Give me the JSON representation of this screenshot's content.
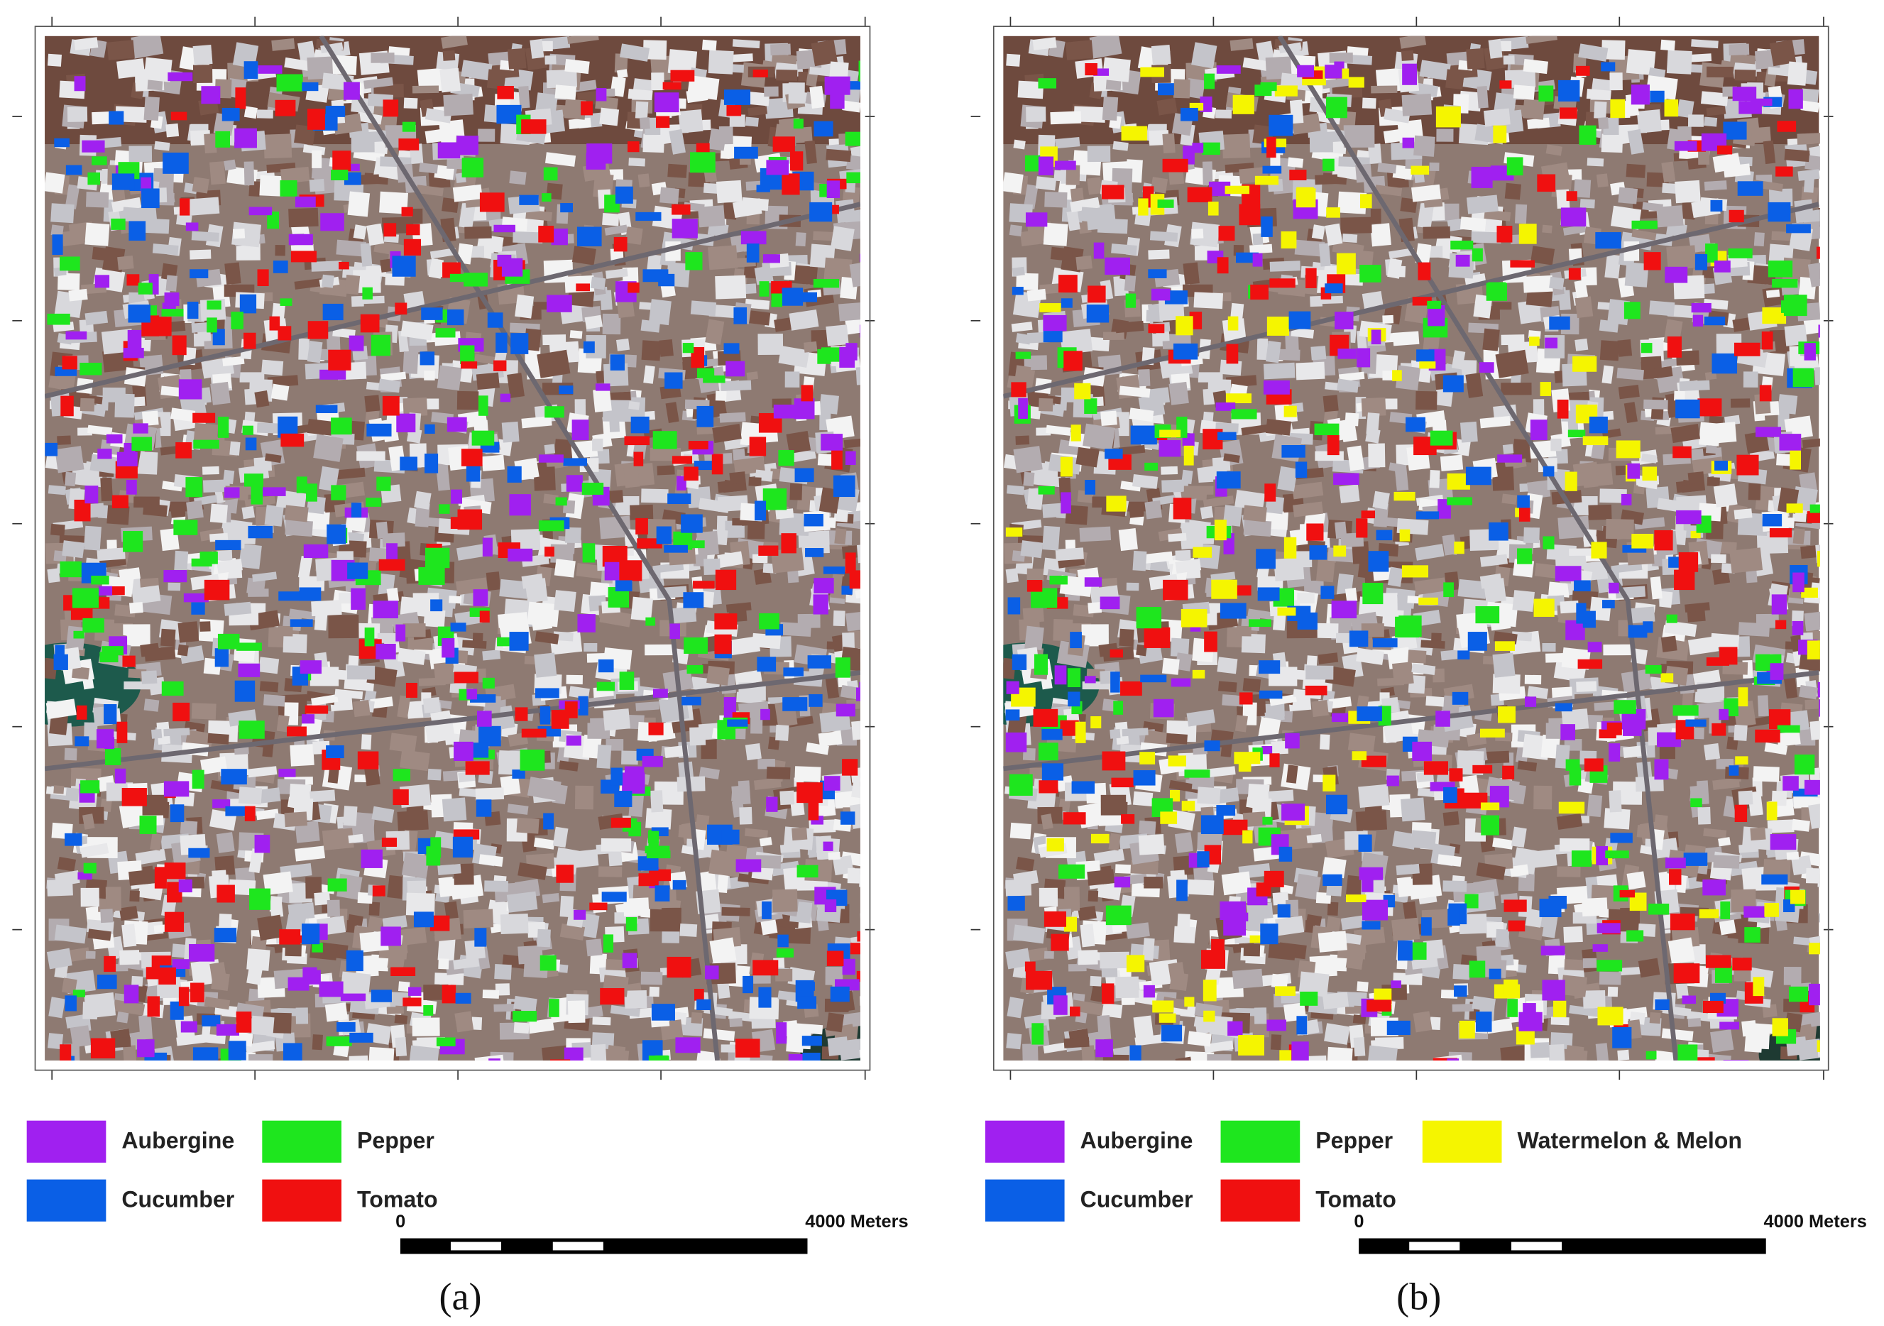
{
  "panels": [
    {
      "label": "(a)",
      "legend": [
        {
          "name": "Aubergine",
          "color": "#a020f0"
        },
        {
          "name": "Cucumber",
          "color": "#0a5fe6"
        },
        {
          "name": "Pepper",
          "color": "#1ee61e"
        },
        {
          "name": "Tomato",
          "color": "#f01010"
        }
      ],
      "scale": {
        "start": 0,
        "end": "4000 Meters"
      }
    },
    {
      "label": "(b)",
      "legend": [
        {
          "name": "Aubergine",
          "color": "#a020f0"
        },
        {
          "name": "Cucumber",
          "color": "#0a5fe6"
        },
        {
          "name": "Pepper",
          "color": "#1ee61e"
        },
        {
          "name": "Tomato",
          "color": "#f01010"
        },
        {
          "name": "Watermelon & Melon",
          "color": "#f5f500"
        }
      ],
      "scale": {
        "start": 0,
        "end": "4000 Meters"
      }
    }
  ]
}
